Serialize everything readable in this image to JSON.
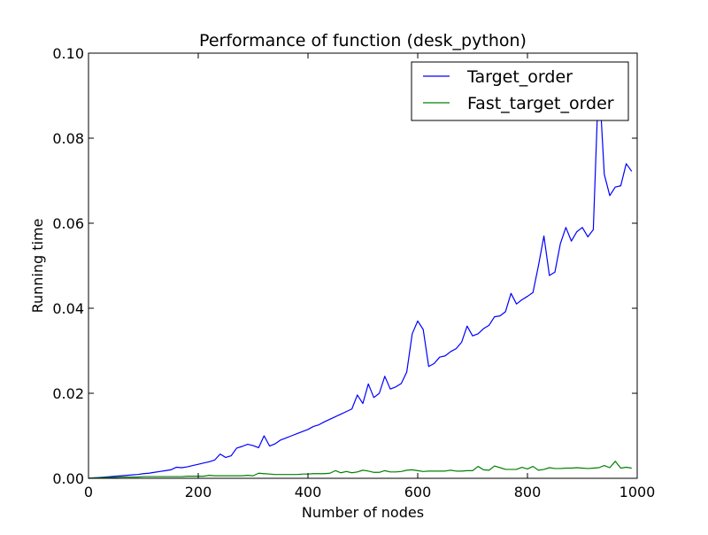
{
  "chart_data": {
    "type": "line",
    "title": "Performance of function (desk_python)",
    "xlabel": "Number of nodes",
    "ylabel": "Running time",
    "xlim": [
      0,
      1000
    ],
    "ylim": [
      0,
      0.1
    ],
    "x_ticks": [
      0,
      200,
      400,
      600,
      800,
      1000
    ],
    "x_tick_labels": [
      "0",
      "200",
      "400",
      "600",
      "800",
      "1000"
    ],
    "y_ticks": [
      0,
      0.02,
      0.04,
      0.06,
      0.08,
      0.1
    ],
    "y_tick_labels": [
      "0.00",
      "0.02",
      "0.04",
      "0.06",
      "0.08",
      "0.10"
    ],
    "grid": false,
    "legend_position": "top-right",
    "x": [
      0,
      10,
      20,
      30,
      40,
      50,
      60,
      70,
      80,
      90,
      100,
      110,
      120,
      130,
      140,
      150,
      160,
      170,
      180,
      190,
      200,
      210,
      220,
      230,
      240,
      250,
      260,
      270,
      280,
      290,
      300,
      310,
      320,
      330,
      340,
      350,
      360,
      370,
      380,
      390,
      400,
      410,
      420,
      430,
      440,
      450,
      460,
      470,
      480,
      490,
      500,
      510,
      520,
      530,
      540,
      550,
      560,
      570,
      580,
      590,
      600,
      610,
      620,
      630,
      640,
      650,
      660,
      670,
      680,
      690,
      700,
      710,
      720,
      730,
      740,
      750,
      760,
      770,
      780,
      790,
      800,
      810,
      820,
      830,
      840,
      850,
      860,
      870,
      880,
      890,
      900,
      910,
      920,
      930,
      940,
      950,
      960,
      970,
      980,
      990
    ],
    "series": [
      {
        "name": "Target_order",
        "color": "#0000ff",
        "values": [
          0.0,
          0.0001,
          0.0002,
          0.0003,
          0.0004,
          0.0005,
          0.0006,
          0.0007,
          0.0008,
          0.0009,
          0.0011,
          0.0012,
          0.0014,
          0.0016,
          0.0018,
          0.002,
          0.0026,
          0.0025,
          0.0027,
          0.003,
          0.0033,
          0.0036,
          0.0039,
          0.0043,
          0.0057,
          0.0049,
          0.0053,
          0.0071,
          0.0075,
          0.008,
          0.0077,
          0.0072,
          0.01,
          0.0076,
          0.0081,
          0.009,
          0.0095,
          0.01,
          0.0105,
          0.011,
          0.0115,
          0.0122,
          0.0126,
          0.0133,
          0.0139,
          0.0145,
          0.0151,
          0.0157,
          0.0163,
          0.0196,
          0.0176,
          0.0222,
          0.019,
          0.02,
          0.024,
          0.021,
          0.0215,
          0.0223,
          0.025,
          0.034,
          0.037,
          0.035,
          0.0263,
          0.027,
          0.0285,
          0.0288,
          0.0298,
          0.0305,
          0.032,
          0.0358,
          0.0335,
          0.034,
          0.0352,
          0.036,
          0.038,
          0.0382,
          0.0392,
          0.0435,
          0.041,
          0.042,
          0.0428,
          0.0437,
          0.05,
          0.057,
          0.0477,
          0.0485,
          0.0552,
          0.059,
          0.0558,
          0.058,
          0.059,
          0.0568,
          0.0585,
          0.095,
          0.0715,
          0.0665,
          0.0685,
          0.0688,
          0.074,
          0.0722
        ]
      },
      {
        "name": "Fast_target_order",
        "color": "#008000",
        "values": [
          0.0,
          0.0001,
          0.0001,
          0.0002,
          0.0002,
          0.0002,
          0.0003,
          0.0003,
          0.0003,
          0.0003,
          0.0004,
          0.0004,
          0.0004,
          0.0004,
          0.0004,
          0.0004,
          0.0004,
          0.0004,
          0.0005,
          0.0005,
          0.0005,
          0.0005,
          0.0007,
          0.0006,
          0.0006,
          0.0006,
          0.0006,
          0.0006,
          0.0006,
          0.0007,
          0.0006,
          0.0012,
          0.0011,
          0.001,
          0.0009,
          0.0009,
          0.0009,
          0.0009,
          0.0009,
          0.001,
          0.001,
          0.0011,
          0.0011,
          0.0011,
          0.0012,
          0.0018,
          0.0013,
          0.0016,
          0.0013,
          0.0015,
          0.0019,
          0.0017,
          0.0014,
          0.0014,
          0.0018,
          0.0015,
          0.0015,
          0.0016,
          0.0019,
          0.002,
          0.0018,
          0.0016,
          0.0017,
          0.0017,
          0.0017,
          0.0017,
          0.0019,
          0.0017,
          0.0017,
          0.0018,
          0.0018,
          0.0028,
          0.002,
          0.0019,
          0.0029,
          0.0025,
          0.0021,
          0.0021,
          0.0021,
          0.0026,
          0.0022,
          0.0028,
          0.0019,
          0.0021,
          0.0025,
          0.0023,
          0.0023,
          0.0024,
          0.0024,
          0.0025,
          0.0024,
          0.0023,
          0.0024,
          0.0025,
          0.003,
          0.0025,
          0.004,
          0.0024,
          0.0026,
          0.0024
        ]
      }
    ]
  }
}
